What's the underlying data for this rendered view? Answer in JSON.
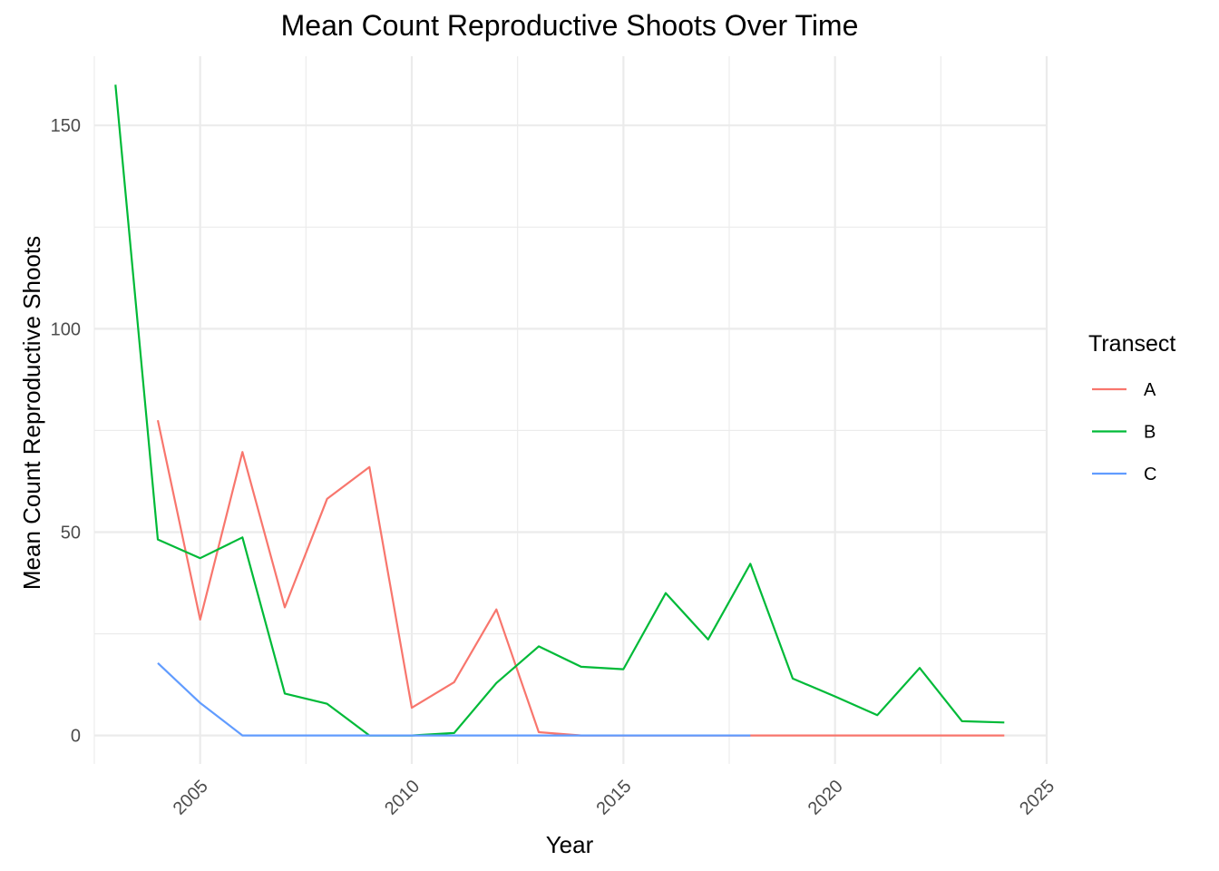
{
  "chart_data": {
    "type": "line",
    "title": "Mean Count Reproductive Shoots Over Time",
    "xlabel": "Year",
    "ylabel": "Mean Count Reproductive Shoots",
    "xlim": [
      2002.5,
      2025.0
    ],
    "ylim": [
      -7,
      167
    ],
    "x_ticks": [
      2005,
      2010,
      2015,
      2020,
      2025
    ],
    "x_minor_ticks": [
      2002.5,
      2007.5,
      2012.5,
      2017.5,
      2022.5
    ],
    "y_ticks": [
      0,
      50,
      100,
      150
    ],
    "y_minor_ticks": [
      25,
      75,
      125
    ],
    "grid": true,
    "legend": {
      "title": "Transect",
      "position": "right"
    },
    "series": [
      {
        "name": "A",
        "color": "#F8766D",
        "x": [
          2004,
          2005,
          2006,
          2007,
          2008,
          2009,
          2010,
          2011,
          2012,
          2013,
          2014,
          2015,
          2016,
          2017,
          2018,
          2019,
          2020,
          2021,
          2022,
          2023,
          2024
        ],
        "y": [
          77.5,
          28.5,
          69.7,
          31.5,
          58.2,
          66.0,
          6.8,
          13.1,
          31.0,
          0.8,
          0,
          0,
          0,
          0,
          0,
          0,
          0,
          0,
          0,
          0,
          0
        ]
      },
      {
        "name": "B",
        "color": "#00BA38",
        "x": [
          2003,
          2004,
          2005,
          2006,
          2007,
          2008,
          2009,
          2010,
          2011,
          2012,
          2013,
          2014,
          2015,
          2016,
          2017,
          2018,
          2019,
          2020,
          2021,
          2022,
          2023,
          2024
        ],
        "y": [
          160.0,
          48.2,
          43.6,
          48.7,
          10.3,
          7.8,
          0,
          0,
          0.6,
          12.9,
          21.9,
          16.9,
          16.3,
          35.0,
          23.6,
          42.2,
          14.0,
          9.6,
          5.0,
          16.6,
          3.5,
          3.2
        ]
      },
      {
        "name": "C",
        "color": "#619CFF",
        "x": [
          2004,
          2005,
          2006,
          2007,
          2008,
          2009,
          2010,
          2011,
          2012,
          2013,
          2014,
          2015,
          2016,
          2017,
          2018
        ],
        "y": [
          17.8,
          8.0,
          0,
          0,
          0,
          0,
          0,
          0,
          0,
          0,
          0,
          0,
          0,
          0,
          0
        ]
      }
    ]
  }
}
